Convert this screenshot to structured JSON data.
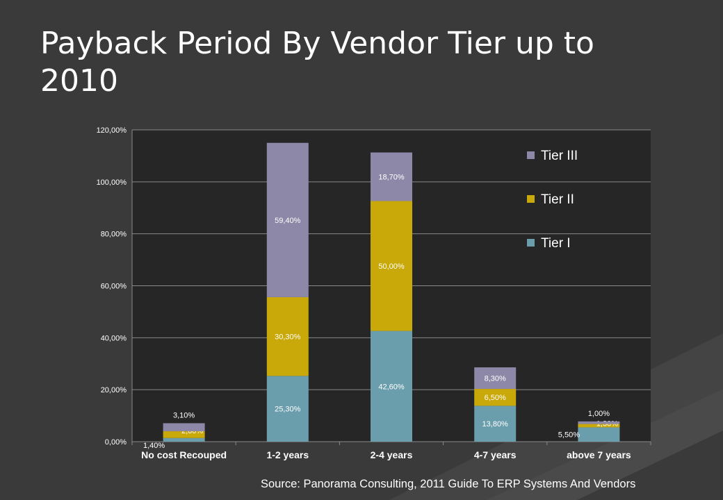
{
  "slide": {
    "title": "Payback Period By Vendor Tier up to 2010",
    "source": "Source: Panorama Consulting, 2011 Guide To ERP Systems And Vendors"
  },
  "colors": {
    "background": "#3a3a3a",
    "plot_background": "#262626",
    "tier_i": "#6b9eac",
    "tier_ii": "#c9a809",
    "tier_iii": "#8e88a8"
  },
  "chart_data": {
    "type": "bar",
    "stacked": true,
    "categories": [
      "No cost Recouped",
      "1-2 years",
      "2-4 years",
      "4-7 years",
      "above 7 years"
    ],
    "series": [
      {
        "name": "Tier I",
        "values": [
          1.4,
          25.3,
          42.6,
          13.8,
          5.5
        ],
        "labels": [
          "1,40%",
          "25,30%",
          "42,60%",
          "13,80%",
          "5,50%"
        ],
        "color": "#6b9eac"
      },
      {
        "name": "Tier II",
        "values": [
          2.6,
          30.3,
          50.0,
          6.5,
          1.3
        ],
        "labels": [
          "2,60%",
          "30,30%",
          "50,00%",
          "6,50%",
          "1,30%"
        ],
        "color": "#c9a809"
      },
      {
        "name": "Tier III",
        "values": [
          3.1,
          59.4,
          18.7,
          8.3,
          1.0
        ],
        "labels": [
          "3,10%",
          "59,40%",
          "18,70%",
          "8,30%",
          "1,00%"
        ],
        "color": "#8e88a8"
      }
    ],
    "yticks": [
      "0,00%",
      "20,00%",
      "40,00%",
      "60,00%",
      "80,00%",
      "100,00%",
      "120,00%"
    ],
    "ylim": [
      0,
      120
    ],
    "grid": true,
    "legend": "right",
    "legend_order": [
      "Tier III",
      "Tier II",
      "Tier I"
    ]
  }
}
